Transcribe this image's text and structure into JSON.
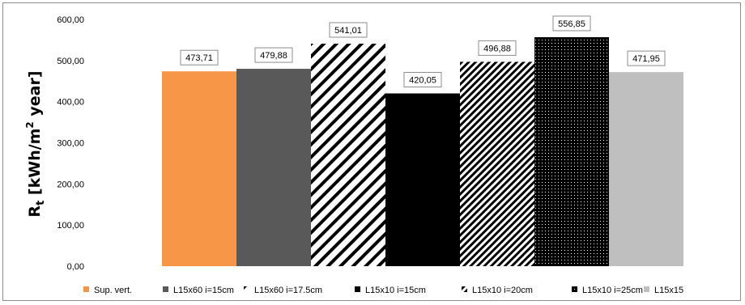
{
  "chart_data": {
    "type": "bar",
    "ylabel_parts": {
      "main": "R",
      "sub": "t",
      "pre_sup": " [kWh/m",
      "sup": "2",
      "post_sup": " year]"
    },
    "ylim": [
      0,
      600
    ],
    "ytick_values": [
      0,
      100,
      200,
      300,
      400,
      500,
      600
    ],
    "ytick_labels": [
      "0,00",
      "100,00",
      "200,00",
      "300,00",
      "400,00",
      "500,00",
      "600,00"
    ],
    "grid": false,
    "legend_position": "bottom",
    "series": [
      {
        "name": "Sup. vert.",
        "value": 473.71,
        "label": "473,71",
        "color": "#f79646",
        "pattern": "solid"
      },
      {
        "name": "L15x60 i=15cm",
        "value": 479.88,
        "label": "479,88",
        "color": "#595959",
        "pattern": "solid"
      },
      {
        "name": "L15x60 i=17.5cm",
        "value": 541.01,
        "label": "541,01",
        "color": "#000000",
        "pattern": "wide-diagonal"
      },
      {
        "name": "L15x10 i=15cm",
        "value": 420.05,
        "label": "420,05",
        "color": "#000000",
        "pattern": "solid"
      },
      {
        "name": "L15x10 i=20cm",
        "value": 496.88,
        "label": "496,88",
        "color": "#000000",
        "pattern": "dense-diagonal"
      },
      {
        "name": "L15x10 i=25cm",
        "value": 556.85,
        "label": "556,85",
        "color": "#000000",
        "pattern": "dotted"
      },
      {
        "name": "L15x15",
        "value": 471.95,
        "label": "471,95",
        "color": "#bfbfbf",
        "pattern": "solid"
      }
    ]
  }
}
